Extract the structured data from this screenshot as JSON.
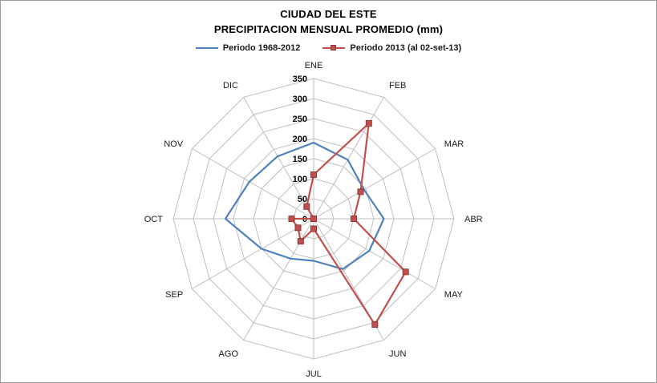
{
  "chart_data": {
    "type": "radar",
    "title": "CIUDAD DEL ESTE",
    "subtitle": "PRECIPITACION MENSUAL PROMEDIO (mm)",
    "categories": [
      "ENE",
      "FEB",
      "MAR",
      "ABR",
      "MAY",
      "JUN",
      "JUL",
      "AGO",
      "SEP",
      "OCT",
      "NOV",
      "DIC"
    ],
    "series": [
      {
        "name": "Periodo 1968-2012",
        "color": "#4F81BD",
        "marker": "none",
        "values": [
          190,
          170,
          145,
          175,
          160,
          145,
          105,
          115,
          150,
          220,
          185,
          180
        ]
      },
      {
        "name": "Periodo 2013 (al 02-set-13)",
        "color": "#C0504D",
        "marker": "square",
        "values": [
          110,
          275,
          135,
          100,
          265,
          305,
          25,
          65,
          45,
          55,
          0,
          35
        ]
      }
    ],
    "r_axis": {
      "min": 0,
      "max": 350,
      "step": 50,
      "tick_labels": [
        "0",
        "50",
        "100",
        "150",
        "200",
        "250",
        "300",
        "350"
      ]
    },
    "gridline_color": "#BFBFBF",
    "legend_position": "top",
    "grid": true,
    "axis_shape": "polygon"
  }
}
